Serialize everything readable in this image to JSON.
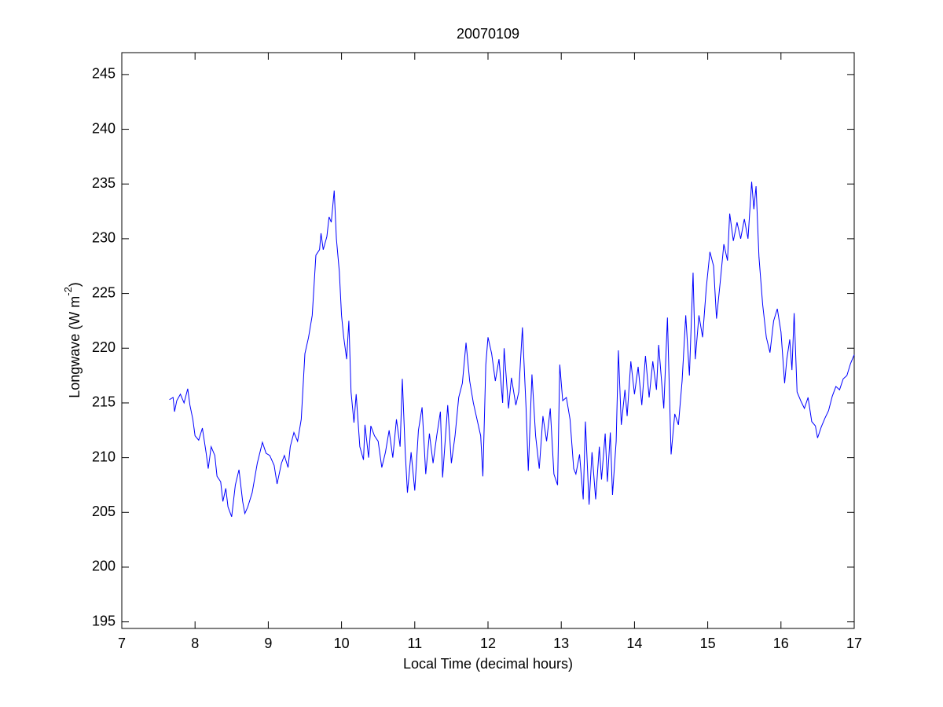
{
  "chart_data": {
    "type": "line",
    "title": "20070109",
    "xlabel": "Local Time (decimal hours)",
    "ylabel": "Longwave (W m",
    "ylabel_sup": "-2",
    "ylabel_end": ")",
    "color": "#0000ff",
    "grid": false,
    "xlim": [
      7,
      17
    ],
    "xticks": [
      7,
      8,
      9,
      10,
      11,
      12,
      13,
      14,
      15,
      16,
      17
    ],
    "ylim": [
      194.4,
      247
    ],
    "yticks": [
      195,
      200,
      205,
      210,
      215,
      220,
      225,
      230,
      235,
      240,
      245
    ],
    "x": [
      7.65,
      7.7,
      7.72,
      7.75,
      7.8,
      7.85,
      7.9,
      7.93,
      7.97,
      8.0,
      8.05,
      8.1,
      8.15,
      8.18,
      8.22,
      8.27,
      8.3,
      8.35,
      8.38,
      8.42,
      8.45,
      8.5,
      8.55,
      8.6,
      8.65,
      8.68,
      8.72,
      8.78,
      8.85,
      8.92,
      8.97,
      9.02,
      9.08,
      9.12,
      9.18,
      9.22,
      9.27,
      9.3,
      9.35,
      9.4,
      9.45,
      9.5,
      9.55,
      9.6,
      9.65,
      9.7,
      9.72,
      9.75,
      9.8,
      9.83,
      9.86,
      9.9,
      9.93,
      9.97,
      10.0,
      10.03,
      10.07,
      10.1,
      10.13,
      10.17,
      10.2,
      10.25,
      10.3,
      10.32,
      10.37,
      10.4,
      10.45,
      10.5,
      10.55,
      10.6,
      10.65,
      10.7,
      10.75,
      10.8,
      10.83,
      10.87,
      10.9,
      10.95,
      11.0,
      11.05,
      11.1,
      11.15,
      11.2,
      11.25,
      11.3,
      11.35,
      11.38,
      11.45,
      11.5,
      11.55,
      11.6,
      11.65,
      11.7,
      11.75,
      11.8,
      11.85,
      11.9,
      11.93,
      11.97,
      12.0,
      12.05,
      12.1,
      12.15,
      12.2,
      12.22,
      12.28,
      12.32,
      12.38,
      12.42,
      12.47,
      12.52,
      12.55,
      12.6,
      12.65,
      12.7,
      12.75,
      12.8,
      12.85,
      12.9,
      12.95,
      12.98,
      13.02,
      13.07,
      13.12,
      13.17,
      13.2,
      13.25,
      13.3,
      13.33,
      13.38,
      13.42,
      13.47,
      13.52,
      13.55,
      13.6,
      13.63,
      13.67,
      13.7,
      13.75,
      13.78,
      13.82,
      13.87,
      13.9,
      13.95,
      14.0,
      14.05,
      14.1,
      14.15,
      14.2,
      14.25,
      14.3,
      14.33,
      14.4,
      14.45,
      14.5,
      14.55,
      14.6,
      14.65,
      14.7,
      14.75,
      14.8,
      14.83,
      14.88,
      14.93,
      14.98,
      15.03,
      15.08,
      15.12,
      15.17,
      15.22,
      15.27,
      15.3,
      15.35,
      15.4,
      15.45,
      15.5,
      15.55,
      15.6,
      15.63,
      15.66,
      15.7,
      15.75,
      15.8,
      15.85,
      15.9,
      15.95,
      16.0,
      16.05,
      16.08,
      16.12,
      16.15,
      16.18,
      16.22,
      16.27,
      16.32,
      16.37,
      16.42,
      16.47,
      16.5,
      16.55,
      16.6,
      16.65,
      16.7,
      16.75,
      16.8,
      16.85,
      16.9,
      16.95,
      17.0
    ],
    "values": [
      215.3,
      215.5,
      214.2,
      215.2,
      215.8,
      215.0,
      216.3,
      214.8,
      213.5,
      212.0,
      211.6,
      212.7,
      210.5,
      209.0,
      211.0,
      210.2,
      208.3,
      207.8,
      206.0,
      207.2,
      205.5,
      204.6,
      207.5,
      208.9,
      206.0,
      204.9,
      205.5,
      206.8,
      209.5,
      211.4,
      210.4,
      210.2,
      209.3,
      207.6,
      209.5,
      210.2,
      209.1,
      211.0,
      212.3,
      211.5,
      213.5,
      219.5,
      221,
      223,
      228.5,
      229,
      230.5,
      229,
      230.2,
      232,
      231.5,
      234.4,
      230,
      227,
      223,
      221,
      219,
      222.5,
      216,
      213.2,
      215.8,
      211,
      209.8,
      213,
      210,
      212.9,
      212,
      211.5,
      209.1,
      210.5,
      212.5,
      210,
      213.5,
      211,
      217.2,
      210.5,
      206.8,
      210.5,
      207.0,
      212.5,
      214.6,
      208.5,
      212.2,
      209.5,
      212.0,
      214.2,
      208.2,
      214.8,
      209.5,
      212,
      215.5,
      216.8,
      220.5,
      217,
      215,
      213.5,
      212.0,
      208.3,
      218.5,
      221,
      219.5,
      217,
      219,
      215,
      220,
      214.5,
      217.3,
      214.8,
      216,
      221.9,
      214.5,
      208.8,
      217.6,
      212,
      209,
      213.8,
      211.5,
      214.5,
      208.5,
      207.5,
      218.5,
      215.2,
      215.5,
      213.5,
      209,
      208.5,
      210.3,
      206.2,
      213.3,
      205.7,
      210.5,
      206.2,
      211,
      208,
      212.2,
      207.8,
      212.3,
      206.6,
      211.5,
      219.8,
      213,
      216.2,
      213.8,
      218.8,
      215.8,
      218.3,
      214.8,
      219.3,
      215.5,
      218.8,
      216.2,
      220.3,
      214.5,
      222.8,
      210.3,
      214,
      213,
      217,
      223,
      217.5,
      226.9,
      219,
      223,
      221,
      225.5,
      228.8,
      227.5,
      222.7,
      226,
      229.5,
      228,
      232.3,
      229.8,
      231.5,
      230,
      231.8,
      230,
      235.2,
      232.7,
      234.8,
      228.3,
      224,
      221,
      219.6,
      222.5,
      223.6,
      221.5,
      216.8,
      219,
      220.8,
      218,
      223.2,
      216,
      215.2,
      214.5,
      215.5,
      213.3,
      212.9,
      211.8,
      212.8,
      213.6,
      214.3,
      215.6,
      216.5,
      216.2,
      217.2,
      217.5,
      218.6,
      219.4
    ]
  }
}
